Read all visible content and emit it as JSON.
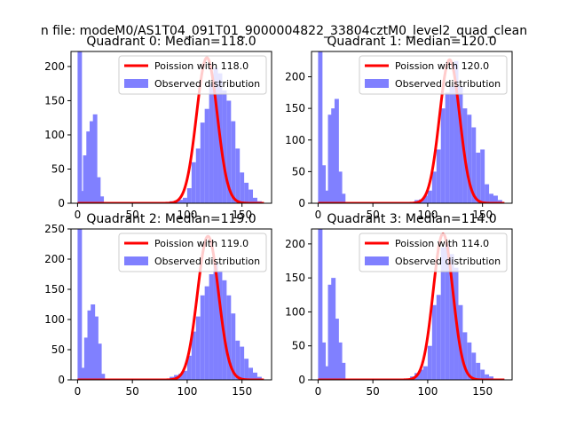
{
  "figure": {
    "suptitle": "n file: modeM0/AS1T04_091T01_9000004822_33804cztM0_level2_quad_clean",
    "colors": {
      "hist": "#8080ff",
      "curve": "#ff0000",
      "axis": "#000000",
      "background": "#ffffff"
    }
  },
  "chart_data": [
    {
      "type": "bar",
      "title": "Quadrant 0: Median=118.0",
      "median": 118.0,
      "bin_width": 4,
      "xlim": [
        -6,
        177
      ],
      "ylim": [
        0,
        222
      ],
      "xticks": [
        0,
        50,
        100,
        150
      ],
      "yticks": [
        0,
        50,
        100,
        150,
        200
      ],
      "legend": {
        "position": "top-right",
        "curve_label": "Poission with 118.0",
        "hist_label": "Observed distribution"
      },
      "hist": [
        {
          "x": 0,
          "y": 222
        },
        {
          "x": 2,
          "y": 18
        },
        {
          "x": 5,
          "y": 70
        },
        {
          "x": 8,
          "y": 105
        },
        {
          "x": 11,
          "y": 120
        },
        {
          "x": 14,
          "y": 130
        },
        {
          "x": 17,
          "y": 38
        },
        {
          "x": 20,
          "y": 10
        },
        {
          "x": 84,
          "y": 3
        },
        {
          "x": 88,
          "y": 4
        },
        {
          "x": 92,
          "y": 5
        },
        {
          "x": 96,
          "y": 8
        },
        {
          "x": 100,
          "y": 22
        },
        {
          "x": 104,
          "y": 60
        },
        {
          "x": 108,
          "y": 80
        },
        {
          "x": 112,
          "y": 118
        },
        {
          "x": 116,
          "y": 138
        },
        {
          "x": 120,
          "y": 175
        },
        {
          "x": 124,
          "y": 198
        },
        {
          "x": 128,
          "y": 190
        },
        {
          "x": 132,
          "y": 165
        },
        {
          "x": 136,
          "y": 150
        },
        {
          "x": 140,
          "y": 120
        },
        {
          "x": 144,
          "y": 80
        },
        {
          "x": 148,
          "y": 45
        },
        {
          "x": 152,
          "y": 30
        },
        {
          "x": 156,
          "y": 20
        },
        {
          "x": 160,
          "y": 8
        },
        {
          "x": 164,
          "y": 3
        }
      ],
      "curve": {
        "mean": 118.0,
        "peak": 213,
        "sigma": 9.5
      }
    },
    {
      "type": "bar",
      "title": "Quadrant 1: Median=120.0",
      "median": 120.0,
      "bin_width": 4,
      "xlim": [
        -6,
        177
      ],
      "ylim": [
        0,
        240
      ],
      "xticks": [
        0,
        50,
        100,
        150
      ],
      "yticks": [
        0,
        50,
        100,
        150,
        200
      ],
      "legend": {
        "position": "top-right",
        "curve_label": "Poission with 120.0",
        "hist_label": "Observed distribution"
      },
      "hist": [
        {
          "x": 0,
          "y": 240
        },
        {
          "x": 3,
          "y": 60
        },
        {
          "x": 6,
          "y": 20
        },
        {
          "x": 9,
          "y": 140
        },
        {
          "x": 12,
          "y": 150
        },
        {
          "x": 15,
          "y": 165
        },
        {
          "x": 18,
          "y": 50
        },
        {
          "x": 21,
          "y": 15
        },
        {
          "x": 88,
          "y": 5
        },
        {
          "x": 92,
          "y": 6
        },
        {
          "x": 96,
          "y": 12
        },
        {
          "x": 100,
          "y": 20
        },
        {
          "x": 104,
          "y": 50
        },
        {
          "x": 108,
          "y": 85
        },
        {
          "x": 112,
          "y": 150
        },
        {
          "x": 116,
          "y": 175
        },
        {
          "x": 120,
          "y": 185
        },
        {
          "x": 124,
          "y": 225
        },
        {
          "x": 128,
          "y": 185
        },
        {
          "x": 132,
          "y": 150
        },
        {
          "x": 136,
          "y": 140
        },
        {
          "x": 140,
          "y": 120
        },
        {
          "x": 144,
          "y": 80
        },
        {
          "x": 148,
          "y": 85
        },
        {
          "x": 152,
          "y": 30
        },
        {
          "x": 156,
          "y": 15
        },
        {
          "x": 160,
          "y": 12
        },
        {
          "x": 164,
          "y": 5
        }
      ],
      "curve": {
        "mean": 120.0,
        "peak": 227,
        "sigma": 9.2
      }
    },
    {
      "type": "bar",
      "title": "Quadrant 2: Median=119.0",
      "median": 119.0,
      "bin_width": 4,
      "xlim": [
        -6,
        177
      ],
      "ylim": [
        0,
        250
      ],
      "xticks": [
        0,
        50,
        100,
        150
      ],
      "yticks": [
        0,
        50,
        100,
        150,
        200,
        250
      ],
      "legend": {
        "position": "top-right",
        "curve_label": "Poission with 119.0",
        "hist_label": "Observed distribution"
      },
      "hist": [
        {
          "x": 0,
          "y": 250
        },
        {
          "x": 3,
          "y": 20
        },
        {
          "x": 6,
          "y": 70
        },
        {
          "x": 9,
          "y": 115
        },
        {
          "x": 12,
          "y": 125
        },
        {
          "x": 15,
          "y": 105
        },
        {
          "x": 18,
          "y": 60
        },
        {
          "x": 21,
          "y": 10
        },
        {
          "x": 84,
          "y": 5
        },
        {
          "x": 88,
          "y": 8
        },
        {
          "x": 92,
          "y": 10
        },
        {
          "x": 96,
          "y": 15
        },
        {
          "x": 100,
          "y": 40
        },
        {
          "x": 104,
          "y": 80
        },
        {
          "x": 108,
          "y": 105
        },
        {
          "x": 112,
          "y": 140
        },
        {
          "x": 116,
          "y": 155
        },
        {
          "x": 120,
          "y": 175
        },
        {
          "x": 124,
          "y": 195
        },
        {
          "x": 128,
          "y": 180
        },
        {
          "x": 132,
          "y": 165
        },
        {
          "x": 136,
          "y": 140
        },
        {
          "x": 140,
          "y": 110
        },
        {
          "x": 144,
          "y": 65
        },
        {
          "x": 148,
          "y": 55
        },
        {
          "x": 152,
          "y": 35
        },
        {
          "x": 156,
          "y": 20
        },
        {
          "x": 160,
          "y": 12
        },
        {
          "x": 164,
          "y": 5
        }
      ],
      "curve": {
        "mean": 119.0,
        "peak": 238,
        "sigma": 9.6
      }
    },
    {
      "type": "bar",
      "title": "Quadrant 3: Median=114.0",
      "median": 114.0,
      "bin_width": 4,
      "xlim": [
        -6,
        177
      ],
      "ylim": [
        0,
        222
      ],
      "xticks": [
        0,
        50,
        100,
        150
      ],
      "yticks": [
        0,
        50,
        100,
        150,
        200
      ],
      "legend": {
        "position": "top-right",
        "curve_label": "Poission with 114.0",
        "hist_label": "Observed distribution"
      },
      "hist": [
        {
          "x": 0,
          "y": 222
        },
        {
          "x": 3,
          "y": 55
        },
        {
          "x": 6,
          "y": 20
        },
        {
          "x": 9,
          "y": 140
        },
        {
          "x": 12,
          "y": 150
        },
        {
          "x": 15,
          "y": 90
        },
        {
          "x": 18,
          "y": 55
        },
        {
          "x": 21,
          "y": 25
        },
        {
          "x": 84,
          "y": 5
        },
        {
          "x": 88,
          "y": 10
        },
        {
          "x": 92,
          "y": 15
        },
        {
          "x": 96,
          "y": 20
        },
        {
          "x": 100,
          "y": 50
        },
        {
          "x": 104,
          "y": 110
        },
        {
          "x": 108,
          "y": 125
        },
        {
          "x": 112,
          "y": 195
        },
        {
          "x": 116,
          "y": 200
        },
        {
          "x": 120,
          "y": 185
        },
        {
          "x": 124,
          "y": 165
        },
        {
          "x": 128,
          "y": 110
        },
        {
          "x": 132,
          "y": 70
        },
        {
          "x": 136,
          "y": 55
        },
        {
          "x": 140,
          "y": 40
        },
        {
          "x": 144,
          "y": 25
        },
        {
          "x": 148,
          "y": 15
        },
        {
          "x": 152,
          "y": 8
        },
        {
          "x": 156,
          "y": 5
        }
      ],
      "curve": {
        "mean": 114.0,
        "peak": 215,
        "sigma": 9.0
      }
    }
  ]
}
